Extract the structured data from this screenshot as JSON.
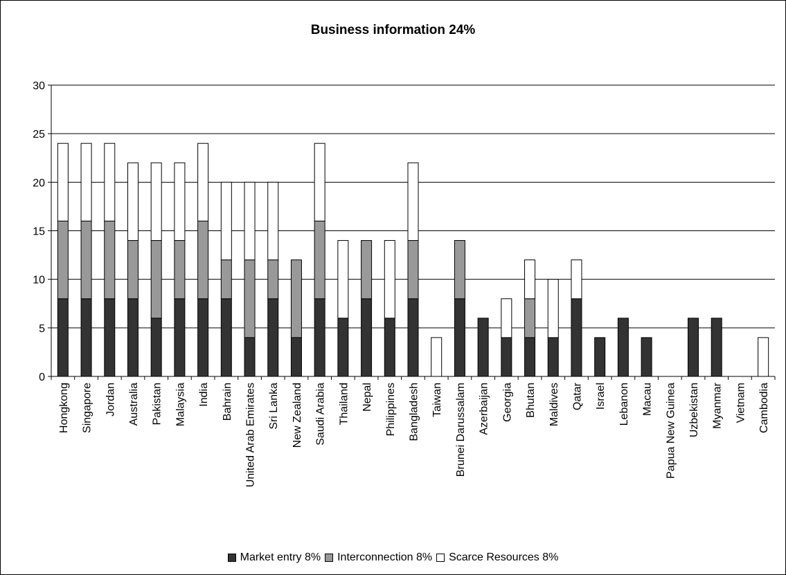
{
  "chart_data": {
    "type": "bar",
    "stacked": true,
    "title": "Business information 24%",
    "xlabel": "",
    "ylabel": "",
    "ylim": [
      0,
      30
    ],
    "yticks": [
      0,
      5,
      10,
      15,
      20,
      25,
      30
    ],
    "grid": true,
    "legend_position": "bottom",
    "categories": [
      "Hongkong",
      "Singapore",
      "Jordan",
      "Australia",
      "Pakistan",
      "Malaysia",
      "India",
      "Bahrain",
      "United Arab Emirates",
      "Sri Lanka",
      "New Zealand",
      "Saudi Arabia",
      "Thailand",
      "Nepal",
      "Philippines",
      "Bangladesh",
      "Taiwan",
      "Brunei Darussalam",
      "Azerbaijan",
      "Georgia",
      "Bhutan",
      "Maldives",
      "Qatar",
      "Israel",
      "Lebanon",
      "Macau",
      "Papua New Guinea",
      "Uzbekistan",
      "Myanmar",
      "Vietnam",
      "Cambodia"
    ],
    "series": [
      {
        "name": "Market entry 8%",
        "color": "#333333",
        "values": [
          8,
          8,
          8,
          8,
          6,
          8,
          8,
          8,
          4,
          8,
          4,
          8,
          6,
          8,
          6,
          8,
          0,
          8,
          6,
          4,
          4,
          4,
          8,
          4,
          6,
          4,
          0,
          6,
          6,
          0,
          0
        ]
      },
      {
        "name": "Interconnection 8%",
        "color": "#999999",
        "values": [
          8,
          8,
          8,
          6,
          8,
          6,
          8,
          4,
          8,
          4,
          8,
          8,
          0,
          6,
          0,
          6,
          0,
          6,
          0,
          0,
          4,
          0,
          0,
          0,
          0,
          0,
          0,
          0,
          0,
          0,
          0
        ]
      },
      {
        "name": "Scarce Resources 8%",
        "color": "#ffffff",
        "values": [
          8,
          8,
          8,
          8,
          8,
          8,
          8,
          8,
          8,
          8,
          0,
          8,
          8,
          0,
          8,
          8,
          4,
          0,
          0,
          4,
          4,
          6,
          4,
          0,
          0,
          0,
          0,
          0,
          0,
          0,
          4
        ]
      }
    ]
  }
}
